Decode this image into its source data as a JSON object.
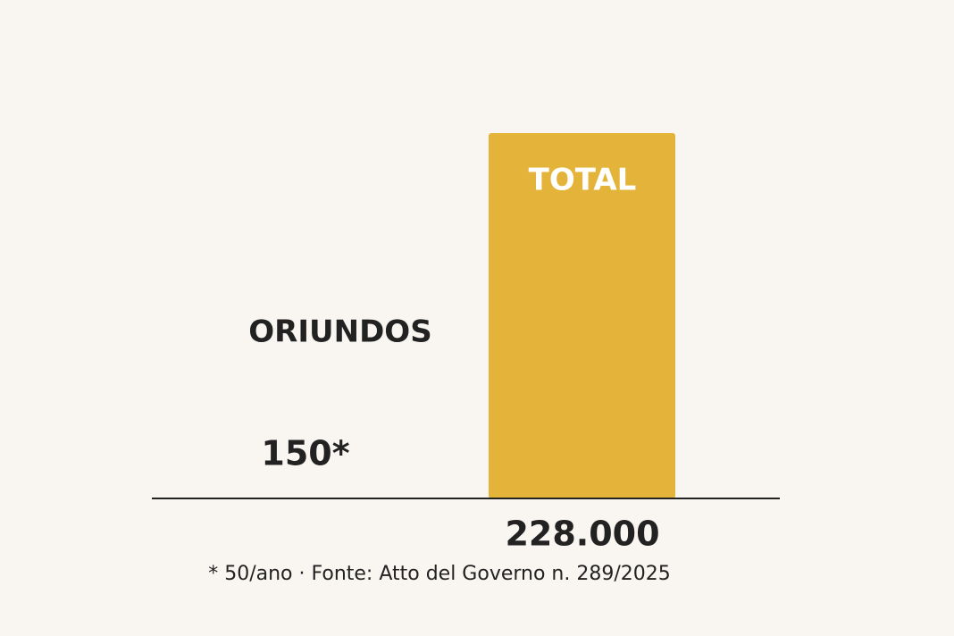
{
  "chart_data": {
    "type": "bar",
    "categories": [
      "ORIUNDOS",
      "TOTAL"
    ],
    "values": [
      150,
      228000
    ],
    "value_labels": [
      "150*",
      "228.000"
    ],
    "colors": [
      "#4caf4f",
      "#e4b43a"
    ],
    "note": "* 50/ano · Fonte: Atto del Governo n. 289/2025"
  }
}
